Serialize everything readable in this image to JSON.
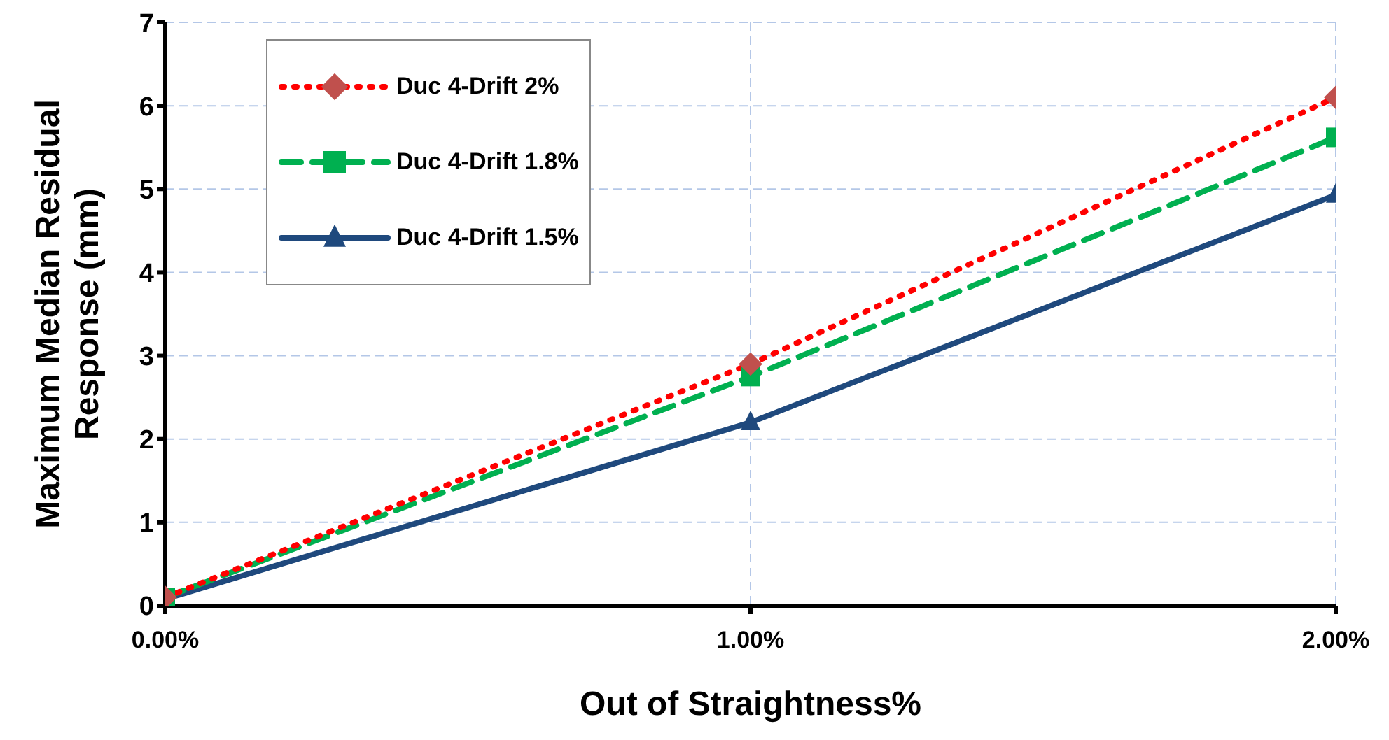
{
  "chart_data": {
    "type": "line",
    "xlabel": "Out of Straightness%",
    "ylabel": "Maximum Median Residual Response (mm)",
    "x": [
      0,
      1,
      2
    ],
    "xlim": [
      0,
      2
    ],
    "xticks": [
      {
        "value": 0,
        "label": "0.00%"
      },
      {
        "value": 1,
        "label": "1.00%"
      },
      {
        "value": 2,
        "label": "2.00%"
      }
    ],
    "ylim": [
      0,
      7
    ],
    "yticks": [
      0,
      1,
      2,
      3,
      4,
      5,
      6,
      7
    ],
    "grid": true,
    "legend": "top left",
    "series": [
      {
        "name": "Duc 4-Drift 2%",
        "color": "#ff0000",
        "values": [
          0.1,
          2.9,
          6.1
        ],
        "marker": "diamond",
        "line_style": "dotted"
      },
      {
        "name": "Duc 4-Drift 1.8%",
        "color": "#00b050",
        "values": [
          0.1,
          2.75,
          5.62
        ],
        "marker": "square",
        "line_style": "dashed"
      },
      {
        "name": "Duc 4-Drift 1.5%",
        "color": "#1f497d",
        "values": [
          0.08,
          2.2,
          4.93
        ],
        "marker": "triangle",
        "line_style": "solid"
      }
    ]
  }
}
